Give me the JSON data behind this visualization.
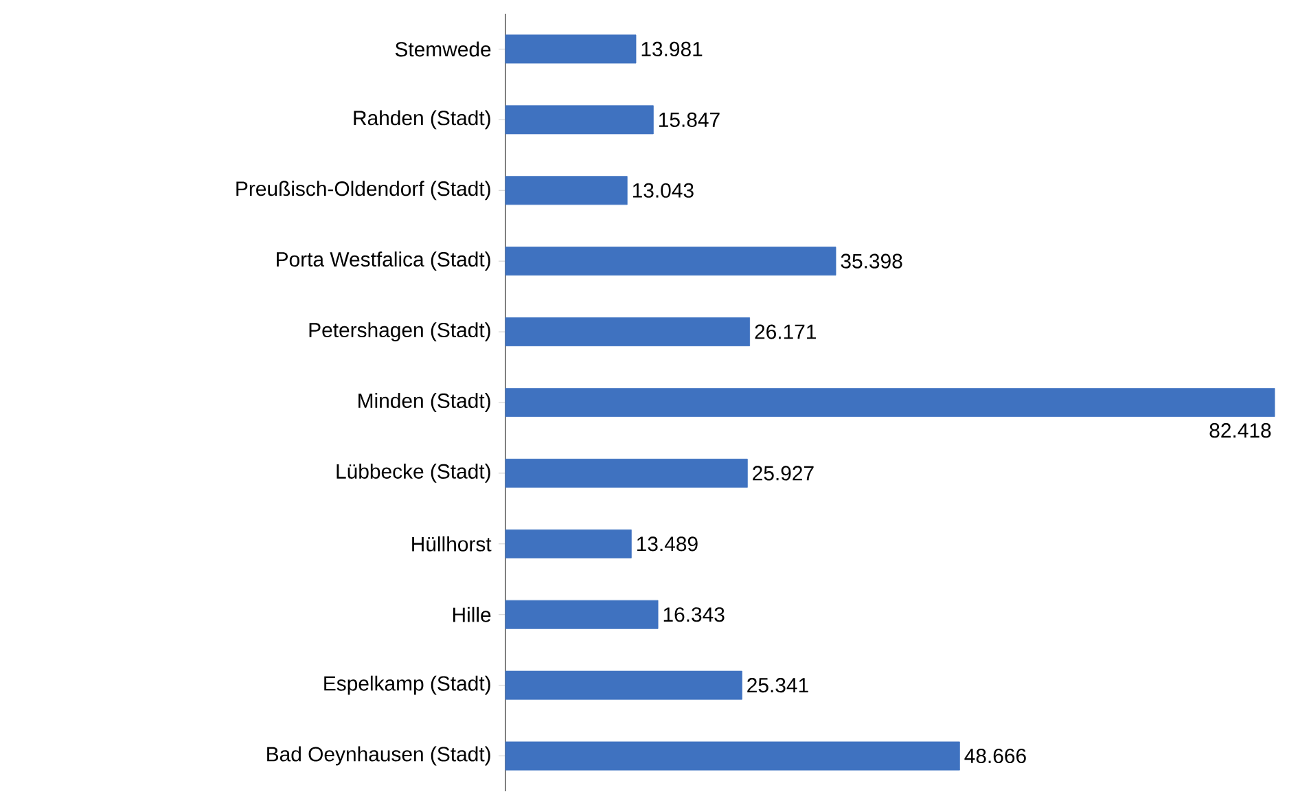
{
  "chart_data": {
    "type": "bar",
    "orientation": "horizontal",
    "color": "#3f72c0",
    "categories": [
      "Stemwede",
      "Rahden  (Stadt)",
      "Preußisch-Oldendorf  (Stadt)",
      "Porta Westfalica (Stadt)",
      "Petershagen (Stadt)",
      "Minden (Stadt)",
      "Lübbecke (Stadt)",
      "Hüllhorst",
      "Hille",
      "Espelkamp (Stadt)",
      "Bad Oeynhausen (Stadt)"
    ],
    "values": [
      13981,
      15847,
      13043,
      35398,
      26171,
      82418,
      25927,
      13489,
      16343,
      25341,
      48666
    ],
    "value_labels": [
      "13.981",
      "15.847",
      "13.043",
      "35.398",
      "26.171",
      "82.418",
      "25.927",
      "13.489",
      "16.343",
      "25.341",
      "48.666"
    ]
  }
}
